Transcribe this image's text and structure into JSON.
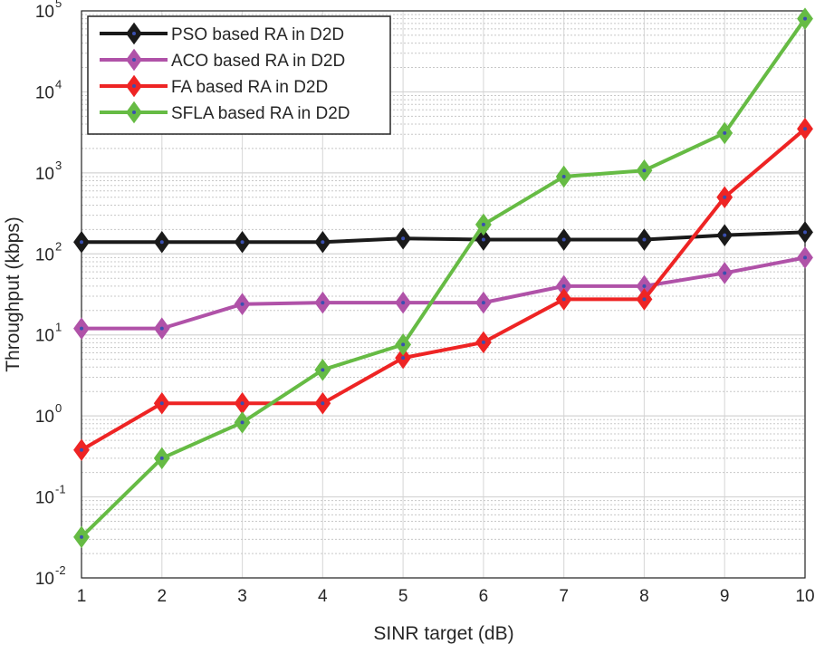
{
  "chart_data": {
    "type": "line",
    "title": "",
    "xlabel": "SINR target (dB)",
    "ylabel": "Throughput (kbps)",
    "xlim": [
      1,
      10
    ],
    "ylim": [
      0.01,
      100000
    ],
    "yscale": "log",
    "grid": true,
    "minor_grid": true,
    "legend_placement": "top-left",
    "x": [
      1,
      2,
      3,
      4,
      5,
      6,
      7,
      8,
      9,
      10
    ],
    "xticks": [
      "1",
      "2",
      "3",
      "4",
      "5",
      "6",
      "7",
      "8",
      "9",
      "10"
    ],
    "yticks": [
      {
        "base": "10",
        "exp": "-2"
      },
      {
        "base": "10",
        "exp": "-1"
      },
      {
        "base": "10",
        "exp": "0"
      },
      {
        "base": "10",
        "exp": "1"
      },
      {
        "base": "10",
        "exp": "2"
      },
      {
        "base": "10",
        "exp": "3"
      },
      {
        "base": "10",
        "exp": "4"
      },
      {
        "base": "10",
        "exp": "5"
      }
    ],
    "marker": "diamond",
    "marker_center_color": "#3a4fb0",
    "series": [
      {
        "name": "PSO based RA in D2D",
        "color": "#1a1a1a",
        "values": [
          140,
          140,
          140,
          140,
          155,
          150,
          150,
          150,
          170,
          185
        ]
      },
      {
        "name": "ACO based RA in D2D",
        "color": "#b052a8",
        "values": [
          12,
          12,
          24,
          25,
          25,
          25,
          40,
          40,
          58,
          90
        ]
      },
      {
        "name": "FA based RA in D2D",
        "color": "#ee2424",
        "values": [
          0.38,
          1.43,
          1.43,
          1.43,
          5.2,
          8.1,
          27.5,
          27.5,
          500,
          3500
        ]
      },
      {
        "name": "SFLA based RA in D2D",
        "color": "#66bb44",
        "values": [
          0.032,
          0.3,
          0.83,
          3.7,
          7.6,
          230,
          900,
          1070,
          3100,
          80000
        ]
      }
    ]
  }
}
